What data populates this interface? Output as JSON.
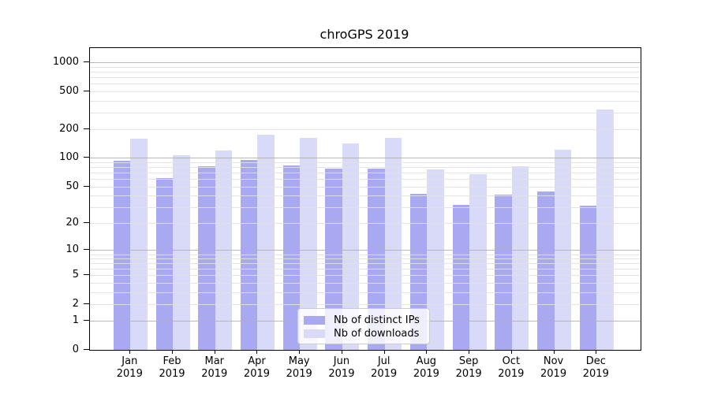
{
  "chart_data": {
    "type": "bar",
    "title": "chroGPS 2019",
    "yscale": "log1p",
    "ylim": [
      0,
      1430
    ],
    "y_ticks": [
      0,
      1,
      2,
      5,
      10,
      20,
      50,
      100,
      200,
      500,
      1000
    ],
    "grid": "on",
    "legend_position": "lower center",
    "xlabel": "",
    "ylabel": "",
    "categories": [
      {
        "month": "Jan",
        "year": "2019"
      },
      {
        "month": "Feb",
        "year": "2019"
      },
      {
        "month": "Mar",
        "year": "2019"
      },
      {
        "month": "Apr",
        "year": "2019"
      },
      {
        "month": "May",
        "year": "2019"
      },
      {
        "month": "Jun",
        "year": "2019"
      },
      {
        "month": "Jul",
        "year": "2019"
      },
      {
        "month": "Aug",
        "year": "2019"
      },
      {
        "month": "Sep",
        "year": "2019"
      },
      {
        "month": "Oct",
        "year": "2019"
      },
      {
        "month": "Nov",
        "year": "2019"
      },
      {
        "month": "Dec",
        "year": "2019"
      }
    ],
    "series": [
      {
        "name": "Nb of distinct IPs",
        "color": "#a8a9f0",
        "values": [
          93,
          61,
          81,
          96,
          84,
          77,
          77,
          42,
          32,
          41,
          44,
          31
        ]
      },
      {
        "name": "Nb of downloads",
        "color": "#d9daf8",
        "values": [
          160,
          106,
          121,
          177,
          164,
          143,
          163,
          75,
          67,
          82,
          122,
          320
        ]
      }
    ]
  },
  "colors": {
    "background": "#ffffff",
    "axis": "#000000",
    "grid_major": "#b0b0b0",
    "grid_minor": "#e1e1e1",
    "text": "#000000"
  }
}
